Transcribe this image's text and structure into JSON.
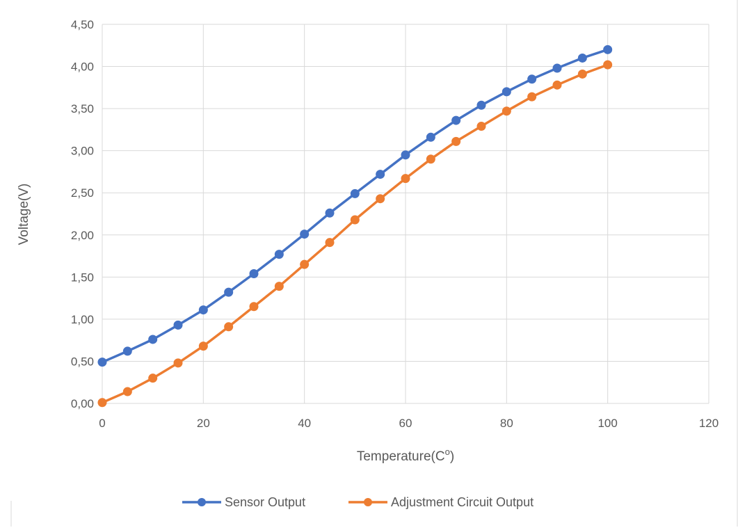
{
  "chart_data": {
    "type": "scatter",
    "xlabel": "Temperature(C",
    "xlabel_superscript": "o",
    "xlabel_close": ")",
    "ylabel": "Voltage(V)",
    "xlim": [
      0,
      120
    ],
    "ylim": [
      0,
      4.5
    ],
    "x_ticks": [
      0,
      20,
      40,
      60,
      80,
      100,
      120
    ],
    "x_tick_labels": [
      "0",
      "20",
      "40",
      "60",
      "80",
      "100",
      "120"
    ],
    "y_ticks": [
      0,
      0.5,
      1,
      1.5,
      2,
      2.5,
      3,
      3.5,
      4,
      4.5
    ],
    "y_tick_labels": [
      "0,00",
      "0,50",
      "1,00",
      "1,50",
      "2,00",
      "2,50",
      "3,00",
      "3,50",
      "4,00",
      "4,50"
    ],
    "grid": true,
    "legend_position": "bottom",
    "x": [
      0,
      5,
      10,
      15,
      20,
      25,
      30,
      35,
      40,
      45,
      50,
      55,
      60,
      65,
      70,
      75,
      80,
      85,
      90,
      95,
      100
    ],
    "series": [
      {
        "name": "Sensor Output",
        "color": "#4472C4",
        "values": [
          0.49,
          0.62,
          0.76,
          0.93,
          1.11,
          1.32,
          1.54,
          1.77,
          2.01,
          2.26,
          2.49,
          2.72,
          2.95,
          3.16,
          3.36,
          3.54,
          3.7,
          3.85,
          3.98,
          4.1,
          4.2
        ]
      },
      {
        "name": "Adjustment Circuit Output",
        "color": "#ED7D31",
        "values": [
          0.01,
          0.14,
          0.3,
          0.48,
          0.68,
          0.91,
          1.15,
          1.39,
          1.65,
          1.91,
          2.18,
          2.43,
          2.67,
          2.9,
          3.11,
          3.29,
          3.47,
          3.64,
          3.78,
          3.91,
          4.02
        ]
      }
    ]
  }
}
